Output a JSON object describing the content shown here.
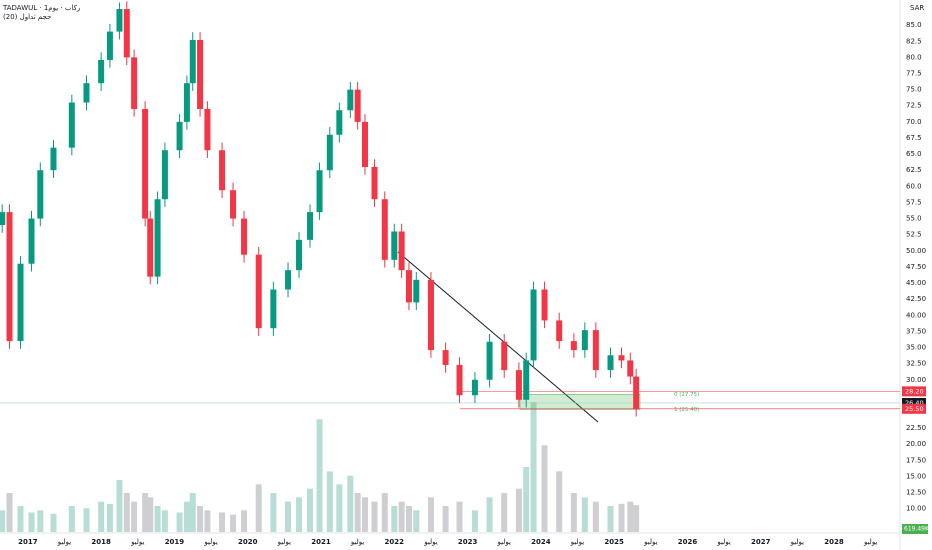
{
  "chart_data": {
    "type": "candlestick",
    "title": "TADAWUL · ركاب · يوم1",
    "subtitle": "حجم تداول (20)",
    "currency": "SAR",
    "up_color": "#089981",
    "down_color": "#f23645",
    "x": [
      2016.65,
      2016.75,
      2016.9,
      2017.05,
      2017.17,
      2017.35,
      2017.6,
      2017.8,
      2018.0,
      2018.12,
      2018.25,
      2018.35,
      2018.45,
      2018.6,
      2018.67,
      2018.77,
      2018.87,
      2019.07,
      2019.17,
      2019.25,
      2019.35,
      2019.45,
      2019.65,
      2019.8,
      2019.95,
      2020.15,
      2020.35,
      2020.55,
      2020.7,
      2020.85,
      2020.98,
      2021.12,
      2021.25,
      2021.4,
      2021.5,
      2021.6,
      2021.73,
      2021.87,
      2022.0,
      2022.1,
      2022.2,
      2022.3,
      2022.5,
      2022.7,
      2022.89,
      2023.1,
      2023.3,
      2023.5,
      2023.7,
      2023.8,
      2023.9,
      2024.05,
      2024.25,
      2024.45,
      2024.6,
      2024.75,
      2024.95,
      2025.1,
      2025.22,
      2025.3
    ],
    "open": [
      54,
      56,
      36,
      48,
      55,
      62.5,
      66,
      73,
      76,
      79.6,
      84,
      87.5,
      80,
      72,
      55,
      46,
      58,
      65.6,
      70,
      76,
      82.7,
      72,
      65.6,
      59.4,
      55,
      49.4,
      38,
      44,
      47,
      51.7,
      56,
      62.5,
      68,
      71.8,
      75,
      70,
      63,
      58,
      48.6,
      53,
      47,
      42,
      45.5,
      34.6,
      32.3,
      27.6,
      30,
      35.9,
      31.5,
      26.9,
      33,
      44,
      39.2,
      36,
      34.6,
      37.7,
      31.5,
      33.8,
      33,
      30.5
    ],
    "high": [
      57.2,
      57.2,
      49.2,
      56.2,
      63.7,
      67.2,
      74.2,
      77.2,
      80.8,
      85.2,
      88.5,
      88.7,
      81.2,
      73.2,
      56.2,
      59.2,
      66.8,
      71.2,
      77.2,
      83.9,
      83.9,
      73.2,
      66.8,
      60.6,
      56.2,
      50.6,
      45.2,
      48.2,
      52.9,
      57.2,
      63.7,
      69.2,
      73,
      76.2,
      76.2,
      71.2,
      64.2,
      59.2,
      54.2,
      54.2,
      48.2,
      46.7,
      46.7,
      35.8,
      33.5,
      31.2,
      37.1,
      37.1,
      32.7,
      34.2,
      45.2,
      45.2,
      40.4,
      37.2,
      38.9,
      38.9,
      35,
      35,
      34.2,
      31.7
    ],
    "low": [
      52.8,
      34.8,
      34.8,
      46.8,
      53.8,
      61.3,
      64.8,
      71.8,
      74.8,
      78.4,
      82.8,
      78.8,
      70.8,
      53.8,
      44.8,
      44.8,
      56.8,
      64.4,
      68.8,
      74.8,
      70.8,
      64.4,
      58.2,
      53.8,
      48.2,
      36.8,
      36.8,
      42.8,
      45.8,
      50.5,
      54.8,
      61.3,
      66.8,
      70.6,
      68.8,
      61.8,
      56.8,
      47.4,
      47.4,
      45.8,
      40.8,
      40.8,
      33.4,
      31.1,
      26.4,
      26.4,
      28.8,
      30.3,
      25.7,
      25.7,
      31.8,
      38,
      34.8,
      33.4,
      33.4,
      30.3,
      30.3,
      31.8,
      29.3,
      24.3
    ],
    "close": [
      56,
      36,
      48,
      55,
      62.5,
      66,
      73,
      76,
      79.6,
      84,
      87.5,
      80,
      72,
      55,
      46,
      58,
      65.6,
      70,
      76,
      82.7,
      72,
      65.6,
      59.4,
      55,
      49.4,
      38,
      44,
      47,
      51.7,
      56,
      62.5,
      68,
      71.8,
      75,
      70,
      63,
      58,
      48.6,
      53,
      47,
      42,
      45.5,
      34.6,
      32.3,
      27.6,
      30,
      35.9,
      31.5,
      26.9,
      33,
      44,
      39.2,
      36,
      34.6,
      37.7,
      31.5,
      33.8,
      33,
      30.5,
      25.5
    ],
    "volume": [
      500,
      900,
      600,
      450,
      500,
      420,
      600,
      550,
      700,
      650,
      1200,
      900,
      700,
      900,
      800,
      600,
      500,
      450,
      700,
      900,
      600,
      500,
      450,
      400,
      500,
      1100,
      900,
      700,
      800,
      1000,
      2600,
      1400,
      1100,
      1300,
      900,
      800,
      700,
      900,
      600,
      700,
      600,
      500,
      800,
      600,
      700,
      500,
      800,
      900,
      1000,
      1500,
      3000,
      2000,
      1400,
      900,
      800,
      700,
      600,
      650,
      700,
      619.49
    ],
    "volume_label": "619.49K",
    "xlim": [
      2016.62,
      2028.9
    ],
    "xticks": [
      2017,
      {
        "value": 2017.5,
        "label": "يوليو"
      },
      2018,
      {
        "value": 2018.5,
        "label": "يوليو"
      },
      2019,
      {
        "value": 2019.5,
        "label": "يوليو"
      },
      2020,
      {
        "value": 2020.5,
        "label": "يوليو"
      },
      2021,
      {
        "value": 2021.5,
        "label": "يوليو"
      },
      2022,
      {
        "value": 2022.5,
        "label": "يوليو"
      },
      2023,
      {
        "value": 2023.5,
        "label": "يوليو"
      },
      2024,
      {
        "value": 2024.5,
        "label": "يوليو"
      },
      2025,
      {
        "value": 2025.5,
        "label": "يوليو"
      },
      2026,
      {
        "value": 2026.5,
        "label": "يوليو"
      },
      2027,
      {
        "value": 2027.5,
        "label": "يوليو"
      },
      2028,
      {
        "value": 2028.5,
        "label": "يوليو"
      }
    ],
    "ylim": [
      6.7,
      88.9
    ],
    "yticks": [
      {
        "value": 85,
        "label": "85.0"
      },
      82.5,
      {
        "value": 80,
        "label": "80.0"
      },
      77.5,
      {
        "value": 75,
        "label": "75.0"
      },
      72.5,
      {
        "value": 70,
        "label": "70.0"
      },
      67.5,
      {
        "value": 65,
        "label": "65.0"
      },
      62.5,
      {
        "value": 60,
        "label": "60.0"
      },
      57.5,
      {
        "value": 55,
        "label": "55.0"
      },
      52.5,
      {
        "value": 50,
        "label": "50.00"
      },
      {
        "value": 47.5,
        "label": "47.50"
      },
      {
        "value": 45,
        "label": "45.00"
      },
      {
        "value": 42.5,
        "label": "42.50"
      },
      {
        "value": 40,
        "label": "40.00"
      },
      {
        "value": 37.5,
        "label": "37.50"
      },
      {
        "value": 35,
        "label": "35.00"
      },
      {
        "value": 32.5,
        "label": "32.50"
      },
      {
        "value": 30,
        "label": "30.00"
      },
      {
        "value": 22.5,
        "label": "22.50"
      },
      {
        "value": 20,
        "label": "20.00"
      },
      {
        "value": 17.5,
        "label": "17.50"
      },
      {
        "value": 15,
        "label": "15.00"
      },
      {
        "value": 12.5,
        "label": "12.50"
      },
      {
        "value": 10,
        "label": "10.00"
      }
    ],
    "price_labels": [
      {
        "value": 28.2,
        "label": "28.20",
        "color": "#f23645"
      },
      {
        "value": 26.4,
        "label": "26.40",
        "color": "#131722"
      },
      {
        "value": 25.5,
        "label": "25.50",
        "color": "#f23645"
      }
    ],
    "fib_levels": [
      {
        "value": 27.75,
        "label": "0 (27.75)"
      },
      {
        "value": 25.4,
        "label": "1 (25.40)"
      }
    ]
  }
}
